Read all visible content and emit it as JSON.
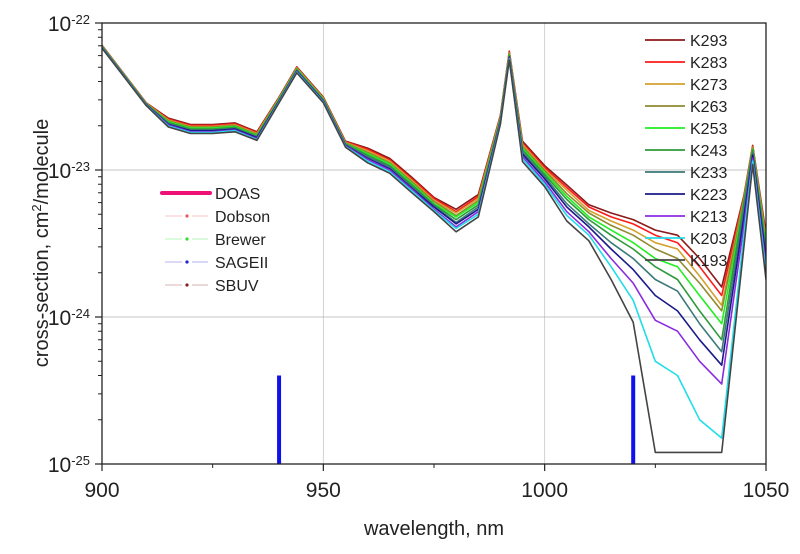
{
  "chart_data": {
    "type": "line",
    "xlabel": "wavelength, nm",
    "ylabel_parts": {
      "before": "cross-section, cm",
      "sup": "2",
      "after": "/molecule"
    },
    "xlim": [
      900,
      1050
    ],
    "ylim": [
      1e-25,
      1e-22
    ],
    "yscale": "log",
    "grid": true,
    "x_ticks": [
      "900",
      "950",
      "1000",
      "1050"
    ],
    "x_tick_values": [
      900,
      950,
      1000,
      1050
    ],
    "y_ticks": [
      {
        "base": "10",
        "exp": "-22",
        "value": 1e-22
      },
      {
        "base": "10",
        "exp": "-23",
        "value": 1e-23
      },
      {
        "base": "10",
        "exp": "-24",
        "value": 1e-24
      },
      {
        "base": "10",
        "exp": "-25",
        "value": 1e-25
      }
    ],
    "x": [
      900,
      905,
      910,
      915,
      920,
      925,
      930,
      935,
      940,
      944,
      950,
      955,
      960,
      965,
      970,
      975,
      980,
      985,
      990,
      992,
      995,
      1000,
      1005,
      1010,
      1015,
      1020,
      1025,
      1030,
      1035,
      1040,
      1045,
      1047,
      1050
    ],
    "series": [
      {
        "name": "K293",
        "color": "#8b1a1a",
        "values": [
          7.06e-23,
          4.5e-23,
          2.86e-23,
          2.25e-23,
          2.04e-23,
          2.04e-23,
          2.09e-23,
          1.82e-23,
          3.14e-23,
          5.03e-23,
          3.14e-23,
          1.57e-23,
          1.41e-23,
          1.2e-23,
          8.9e-24,
          6.5e-24,
          5.4e-24,
          6.8e-24,
          2.36e-23,
          6.43e-23,
          1.57e-23,
          1.07e-23,
          7.9e-24,
          5.8e-24,
          5.1e-24,
          4.6e-24,
          3.9e-24,
          3.6e-24,
          2.5e-24,
          1.6e-24,
          6.7e-24,
          1.47e-23,
          3.7e-24
        ]
      },
      {
        "name": "K283",
        "color": "#ff1a1a",
        "values": [
          7.03e-23,
          4.48e-23,
          2.85e-23,
          2.22e-23,
          2.01e-23,
          2.01e-23,
          2.06e-23,
          1.8e-23,
          3.11e-23,
          4.98e-23,
          3.11e-23,
          1.56e-23,
          1.38e-23,
          1.17e-23,
          8.7e-24,
          6.4e-24,
          5.2e-24,
          6.6e-24,
          2.33e-23,
          6.34e-23,
          1.53e-23,
          1.04e-23,
          7.6e-24,
          5.6e-24,
          4.8e-24,
          4.3e-24,
          3.6e-24,
          3.2e-24,
          2.2e-24,
          1.4e-24,
          6.6e-24,
          1.45e-23,
          3.5e-24
        ]
      },
      {
        "name": "K273",
        "color": "#d4a030",
        "values": [
          7e-23,
          4.46e-23,
          2.84e-23,
          2.19e-23,
          1.98e-23,
          1.98e-23,
          2.03e-23,
          1.77e-23,
          3.08e-23,
          4.94e-23,
          3.08e-23,
          1.54e-23,
          1.35e-23,
          1.15e-23,
          8.5e-24,
          6.2e-24,
          5.1e-24,
          6.4e-24,
          2.3e-23,
          6.26e-23,
          1.49e-23,
          1.01e-23,
          7.3e-24,
          5.3e-24,
          4.5e-24,
          3.9e-24,
          3.2e-24,
          2.9e-24,
          1.9e-24,
          1.2e-24,
          6.4e-24,
          1.43e-23,
          3.4e-24
        ]
      },
      {
        "name": "K263",
        "color": "#8f8a30",
        "values": [
          6.96e-23,
          4.44e-23,
          2.82e-23,
          2.16e-23,
          1.96e-23,
          1.96e-23,
          2.01e-23,
          1.75e-23,
          3.06e-23,
          4.89e-23,
          3.06e-23,
          1.53e-23,
          1.32e-23,
          1.12e-23,
          8.3e-24,
          6.1e-24,
          4.9e-24,
          6.2e-24,
          2.26e-23,
          6.17e-23,
          1.45e-23,
          9.9e-24,
          6.9e-24,
          5.1e-24,
          4.2e-24,
          3.6e-24,
          2.9e-24,
          2.5e-24,
          1.7e-24,
          1.1e-24,
          6.3e-24,
          1.41e-23,
          3.2e-24
        ]
      },
      {
        "name": "K253",
        "color": "#22ee22",
        "values": [
          6.93e-23,
          4.42e-23,
          2.81e-23,
          2.13e-23,
          1.93e-23,
          1.93e-23,
          1.98e-23,
          1.72e-23,
          3.03e-23,
          4.85e-23,
          3.03e-23,
          1.51e-23,
          1.29e-23,
          1.1e-23,
          8.1e-24,
          5.9e-24,
          4.8e-24,
          6e-24,
          2.23e-23,
          6.09e-23,
          1.41e-23,
          9.6e-24,
          6.6e-24,
          4.8e-24,
          3.9e-24,
          3.2e-24,
          2.5e-24,
          2.2e-24,
          1.4e-24,
          9e-25,
          6.1e-24,
          1.39e-23,
          3.1e-24
        ]
      },
      {
        "name": "K243",
        "color": "#2e9a3a",
        "values": [
          6.9e-23,
          4.4e-23,
          2.8e-23,
          2.1e-23,
          1.9e-23,
          1.9e-23,
          1.95e-23,
          1.7e-23,
          3e-23,
          4.8e-23,
          3e-23,
          1.5e-23,
          1.26e-23,
          1.07e-23,
          7.9e-24,
          5.8e-24,
          4.6e-24,
          5.8e-24,
          2.2e-23,
          6e-23,
          1.37e-23,
          9.3e-24,
          6.3e-24,
          4.6e-24,
          3.6e-24,
          2.9e-24,
          2.2e-24,
          1.8e-24,
          1.1e-24,
          7e-25,
          6e-24,
          1.37e-23,
          2.9e-24
        ]
      },
      {
        "name": "K233",
        "color": "#3a7a78",
        "values": [
          6.87e-23,
          4.38e-23,
          2.79e-23,
          2.07e-23,
          1.87e-23,
          1.87e-23,
          1.92e-23,
          1.68e-23,
          2.97e-23,
          4.76e-23,
          2.97e-23,
          1.49e-23,
          1.23e-23,
          1.05e-23,
          7.7e-24,
          5.7e-24,
          4.4e-24,
          5.6e-24,
          2.17e-23,
          5.92e-23,
          1.32e-23,
          9e-24,
          5.9e-24,
          4.3e-24,
          3.2e-24,
          2.5e-24,
          1.8e-24,
          1.5e-24,
          9e-25,
          5.8e-25,
          5.4e-24,
          1.31e-23,
          2.7e-24
        ]
      },
      {
        "name": "K223",
        "color": "#1a1a8a",
        "values": [
          6.84e-23,
          4.36e-23,
          2.78e-23,
          2.04e-23,
          1.85e-23,
          1.85e-23,
          1.9e-23,
          1.66e-23,
          2.95e-23,
          4.71e-23,
          2.95e-23,
          1.47e-23,
          1.2e-23,
          1.02e-23,
          7.5e-24,
          5.6e-24,
          4.3e-24,
          5.4e-24,
          2.14e-23,
          5.84e-23,
          1.28e-23,
          8.7e-24,
          5.6e-24,
          4.1e-24,
          2.9e-24,
          2.1e-24,
          1.4e-24,
          1.1e-24,
          7e-25,
          4.7e-25,
          4.8e-24,
          1.26e-23,
          2.5e-24
        ]
      },
      {
        "name": "K213",
        "color": "#8a2be2",
        "values": [
          6.8e-23,
          4.34e-23,
          2.76e-23,
          2.02e-23,
          1.82e-23,
          1.82e-23,
          1.87e-23,
          1.63e-23,
          2.92e-23,
          4.67e-23,
          2.92e-23,
          1.46e-23,
          1.18e-23,
          1e-23,
          7.4e-24,
          5.4e-24,
          4.1e-24,
          5.2e-24,
          2.11e-23,
          5.76e-23,
          1.23e-23,
          8.3e-24,
          5.2e-24,
          3.8e-24,
          2.5e-24,
          1.7e-24,
          9.5e-25,
          8e-25,
          5e-25,
          3.5e-25,
          4.2e-24,
          1.2e-23,
          2.2e-24
        ]
      },
      {
        "name": "K203",
        "color": "#22dde8",
        "values": [
          6.77e-23,
          4.32e-23,
          2.75e-23,
          1.99e-23,
          1.8e-23,
          1.8e-23,
          1.85e-23,
          1.61e-23,
          2.9e-23,
          4.62e-23,
          2.9e-23,
          1.44e-23,
          1.15e-23,
          9.7e-24,
          7.2e-24,
          5.3e-24,
          4e-24,
          5e-24,
          2.08e-23,
          5.68e-23,
          1.19e-23,
          8e-24,
          4.9e-24,
          3.6e-24,
          2.2e-24,
          1.3e-24,
          5e-25,
          4e-25,
          2e-25,
          1.5e-25,
          3.6e-24,
          1.15e-23,
          2e-24
        ]
      },
      {
        "name": "K193",
        "color": "#444444",
        "values": [
          6.74e-23,
          4.3e-23,
          2.74e-23,
          1.96e-23,
          1.77e-23,
          1.77e-23,
          1.82e-23,
          1.59e-23,
          2.87e-23,
          4.58e-23,
          2.87e-23,
          1.43e-23,
          1.12e-23,
          9.5e-24,
          7e-24,
          5.2e-24,
          3.8e-24,
          4.8e-24,
          2.05e-23,
          5.6e-23,
          1.14e-23,
          7.7e-24,
          4.5e-24,
          3.3e-24,
          1.8e-24,
          9.2e-25,
          1.2e-25,
          1.2e-25,
          1.2e-25,
          1.2e-25,
          3e-24,
          1.09e-23,
          1.8e-24
        ]
      }
    ],
    "markers": {
      "color": "#1010ee",
      "x": [
        940,
        1020
      ],
      "y": [
        4e-25,
        4e-25
      ]
    },
    "legend_right": {
      "placement": "top-right"
    },
    "legend_left": {
      "placement": "center-left",
      "entries": [
        {
          "name": "DOAS",
          "color": "#ee1177",
          "style": "thick-line"
        },
        {
          "name": "Dobson",
          "color": "#ee5555",
          "style": "dash-dot"
        },
        {
          "name": "Brewer",
          "color": "#33dd33",
          "style": "dash-dot"
        },
        {
          "name": "SAGEII",
          "color": "#2222cc",
          "style": "dash-dot"
        },
        {
          "name": "SBUV",
          "color": "#882222",
          "style": "dash-dot"
        }
      ]
    }
  }
}
